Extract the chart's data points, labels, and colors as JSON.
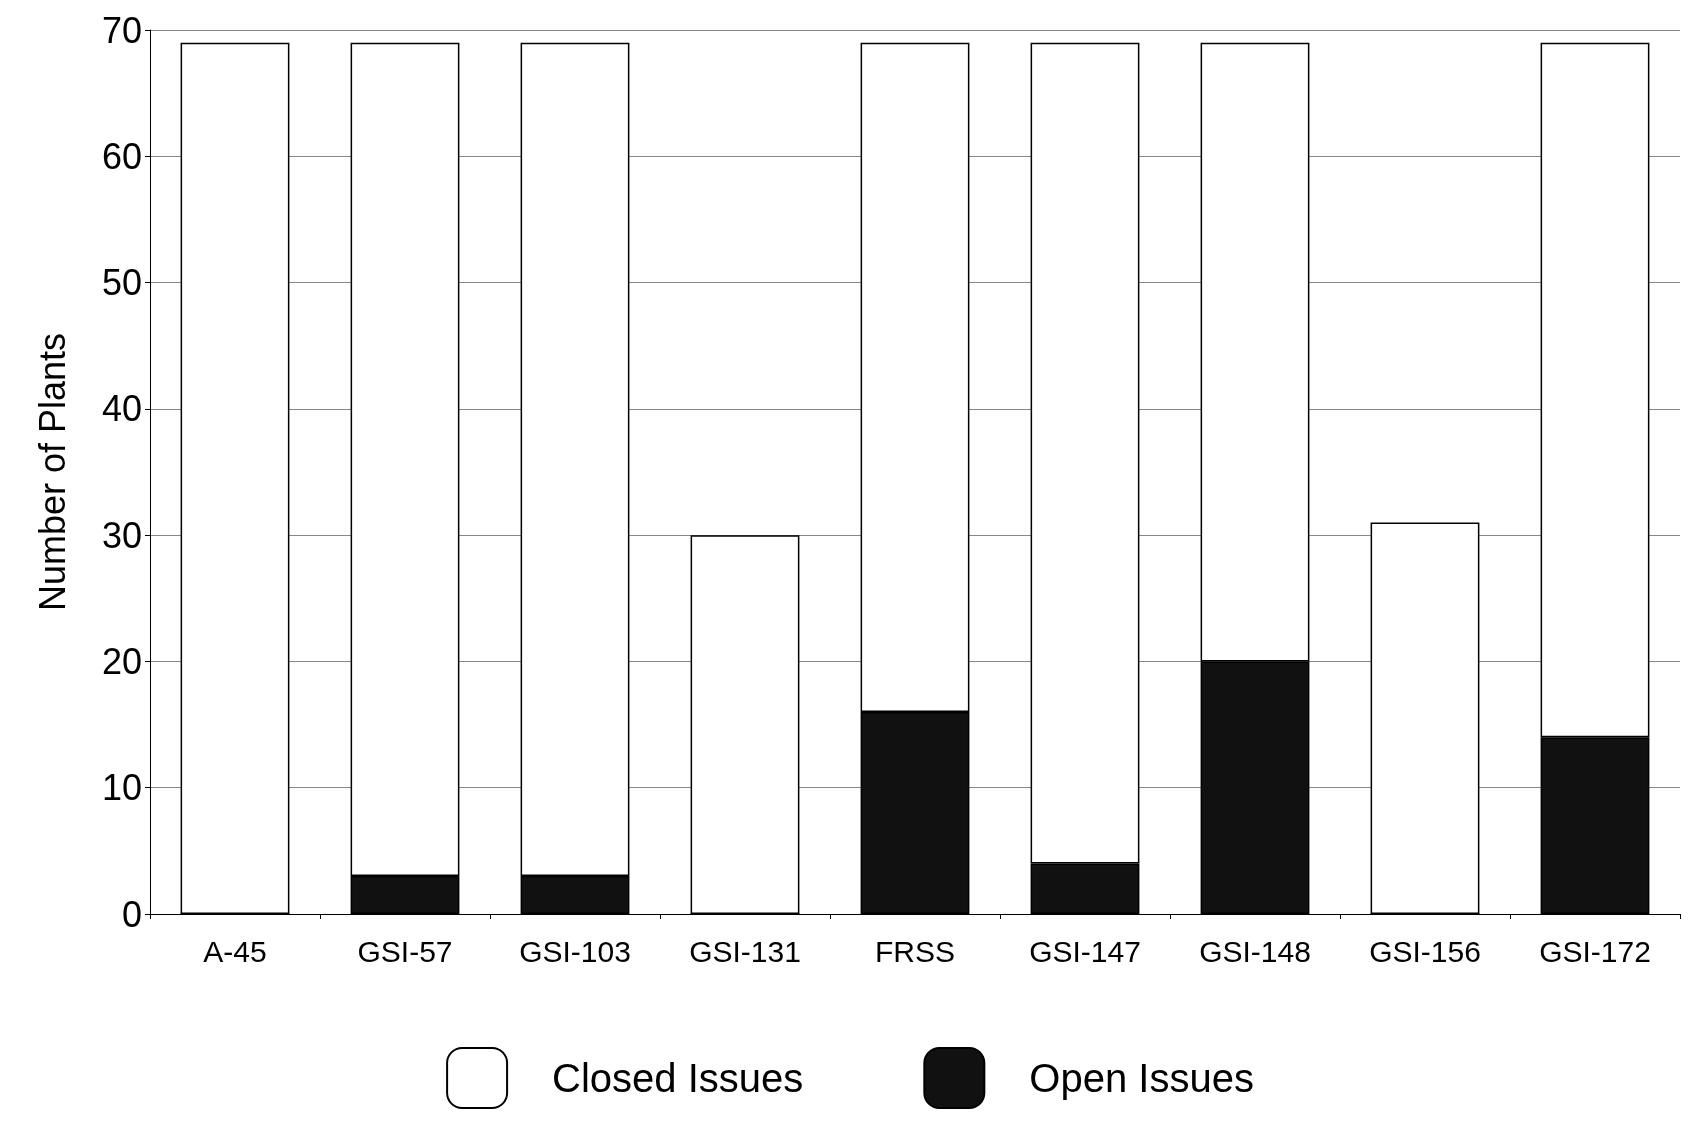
{
  "chart_data": {
    "type": "bar",
    "ylabel": "Number of Plants",
    "categories": [
      "A-45",
      "GSI-57",
      "GSI-103",
      "GSI-131",
      "FRSS",
      "GSI-147",
      "GSI-148",
      "GSI-156",
      "GSI-172"
    ],
    "series": [
      {
        "name": "Open Issues",
        "color": "#111111",
        "values": [
          0,
          3,
          3,
          0,
          16,
          4,
          20,
          0,
          14
        ]
      },
      {
        "name": "Closed Issues",
        "color": "#ffffff",
        "values": [
          69,
          66,
          66,
          30,
          53,
          65,
          49,
          31,
          55
        ]
      }
    ],
    "stacked": true,
    "ylim": [
      0,
      70
    ],
    "yticks": [
      0,
      10,
      20,
      30,
      40,
      50,
      60,
      70
    ],
    "grid": "y",
    "legend": "bottom"
  }
}
